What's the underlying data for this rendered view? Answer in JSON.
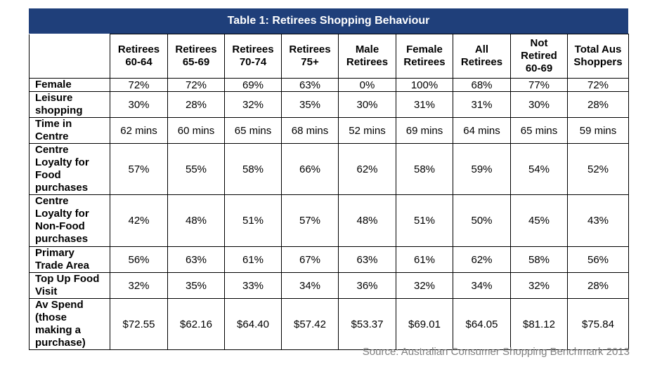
{
  "table": {
    "title": "Table 1: Retirees Shopping Behaviour",
    "columns": [
      "Retirees\n60-64",
      "Retirees\n65-69",
      "Retirees\n70-74",
      "Retirees\n75+",
      "Male\nRetirees",
      "Female\nRetirees",
      "All\nRetirees",
      "Not\nRetired\n60-69",
      "Total Aus\nShoppers"
    ],
    "rows": [
      {
        "label": "Female",
        "values": [
          "72%",
          "72%",
          "69%",
          "63%",
          "0%",
          "100%",
          "68%",
          "77%",
          "72%"
        ]
      },
      {
        "label": "Leisure\nshopping",
        "values": [
          "30%",
          "28%",
          "32%",
          "35%",
          "30%",
          "31%",
          "31%",
          "30%",
          "28%"
        ]
      },
      {
        "label": "Time in\nCentre",
        "values": [
          "62 mins",
          "60 mins",
          "65 mins",
          "68 mins",
          "52 mins",
          "69 mins",
          "64 mins",
          "65 mins",
          "59 mins"
        ]
      },
      {
        "label": "Centre\nLoyalty for\nFood\npurchases",
        "values": [
          "57%",
          "55%",
          "58%",
          "66%",
          "62%",
          "58%",
          "59%",
          "54%",
          "52%"
        ]
      },
      {
        "label": "Centre\nLoyalty for\nNon-Food\npurchases",
        "values": [
          "42%",
          "48%",
          "51%",
          "57%",
          "48%",
          "51%",
          "50%",
          "45%",
          "43%"
        ]
      },
      {
        "label": "Primary\nTrade Area",
        "values": [
          "56%",
          "63%",
          "61%",
          "67%",
          "63%",
          "61%",
          "62%",
          "58%",
          "56%"
        ]
      },
      {
        "label": "Top Up Food\nVisit",
        "values": [
          "32%",
          "35%",
          "33%",
          "34%",
          "36%",
          "32%",
          "34%",
          "32%",
          "28%"
        ]
      },
      {
        "label": "Av Spend\n(those\nmaking a\npurchase)",
        "values": [
          "$72.55",
          "$62.16",
          "$64.40",
          "$57.42",
          "$53.37",
          "$69.01",
          "$64.05",
          "$81.12",
          "$75.84"
        ]
      }
    ],
    "source": "Source: Australian Consumer Shopping Benchmark 2013"
  },
  "colors": {
    "title_bg": "#1f3f7a",
    "source_text": "#7f7f7f"
  }
}
